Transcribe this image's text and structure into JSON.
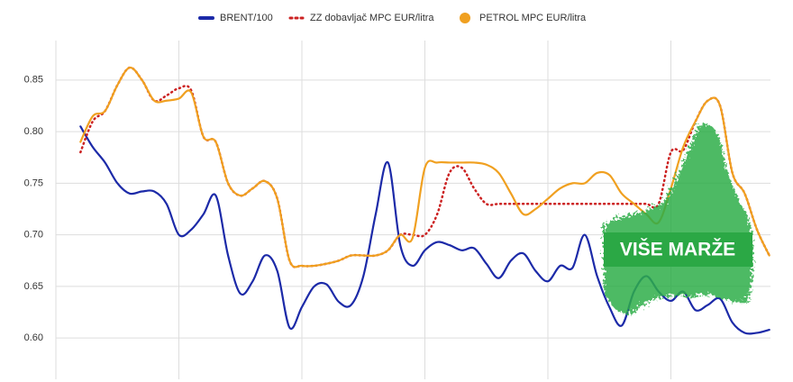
{
  "chart_data": {
    "type": "line",
    "categories": [
      null,
      null,
      null,
      null,
      null,
      null,
      null,
      null,
      null,
      null,
      null,
      null,
      null,
      null,
      null,
      null,
      null,
      null,
      null,
      null,
      null,
      null,
      null,
      null,
      null,
      null,
      null,
      null,
      null,
      null,
      null,
      null,
      null,
      null,
      null,
      null,
      null,
      null,
      null,
      null,
      null,
      null,
      null,
      null,
      null,
      null,
      null,
      null,
      null,
      null,
      null,
      null,
      null,
      null,
      null,
      null,
      null,
      null,
      null
    ],
    "series": [
      {
        "name": "BRENT/100",
        "color": "#1c2aa8",
        "style": "solid",
        "values": [
          null,
          null,
          0.805,
          0.785,
          0.77,
          0.75,
          0.74,
          0.742,
          0.742,
          0.73,
          0.7,
          0.705,
          0.72,
          0.738,
          0.68,
          0.643,
          0.655,
          0.68,
          0.665,
          0.61,
          0.63,
          0.65,
          0.652,
          0.635,
          0.632,
          0.66,
          0.72,
          0.77,
          0.69,
          0.67,
          0.685,
          0.693,
          0.69,
          0.685,
          0.687,
          0.672,
          0.658,
          0.675,
          0.682,
          0.665,
          0.655,
          0.67,
          0.668,
          0.7,
          0.66,
          0.63,
          0.612,
          0.645,
          0.66,
          0.645,
          0.636,
          0.645,
          0.627,
          0.632,
          0.638,
          0.615,
          0.605,
          0.605,
          0.608
        ]
      },
      {
        "name": "ZZ dobavljač MPC EUR/litra",
        "color": "#cc2222",
        "style": "dotted",
        "values": [
          null,
          null,
          0.78,
          0.81,
          0.82,
          0.845,
          0.862,
          0.85,
          0.83,
          0.835,
          0.842,
          0.84,
          0.795,
          0.79,
          0.75,
          0.738,
          0.745,
          0.752,
          0.735,
          0.675,
          0.67,
          0.67,
          0.672,
          0.675,
          0.68,
          0.68,
          0.68,
          0.685,
          0.7,
          0.7,
          0.7,
          0.72,
          0.76,
          0.765,
          0.745,
          0.73,
          0.73,
          0.73,
          0.73,
          0.73,
          0.73,
          0.73,
          0.73,
          0.73,
          0.73,
          0.73,
          0.73,
          0.73,
          0.73,
          0.73,
          0.78,
          0.782,
          0.81,
          0.83,
          0.825,
          0.76,
          0.74,
          0.705,
          0.68
        ]
      },
      {
        "name": "PETROL MPC EUR/litra",
        "color": "#f0a020",
        "style": "solid",
        "values": [
          null,
          null,
          0.79,
          0.815,
          0.82,
          0.845,
          0.862,
          0.85,
          0.83,
          0.83,
          0.832,
          0.838,
          0.795,
          0.79,
          0.75,
          0.738,
          0.745,
          0.752,
          0.735,
          0.675,
          0.67,
          0.67,
          0.672,
          0.675,
          0.68,
          0.68,
          0.68,
          0.685,
          0.7,
          0.697,
          0.765,
          0.77,
          0.77,
          0.77,
          0.77,
          0.768,
          0.76,
          0.74,
          0.72,
          0.725,
          0.735,
          0.745,
          0.75,
          0.75,
          0.76,
          0.758,
          0.74,
          0.73,
          0.72,
          0.712,
          0.745,
          0.785,
          0.81,
          0.83,
          0.825,
          0.76,
          0.74,
          0.705,
          0.68
        ]
      }
    ],
    "ylim": [
      0.56,
      0.89
    ],
    "yticks": [
      {
        "value": 0.6,
        "label": "0.60"
      },
      {
        "value": 0.65,
        "label": "0.65"
      },
      {
        "value": 0.7,
        "label": "0.70"
      },
      {
        "value": 0.75,
        "label": "0.75"
      },
      {
        "value": 0.8,
        "label": "0.80"
      },
      {
        "value": 0.85,
        "label": "0.85"
      }
    ],
    "grid": true,
    "annotation": "VIŠE MARŽE"
  }
}
